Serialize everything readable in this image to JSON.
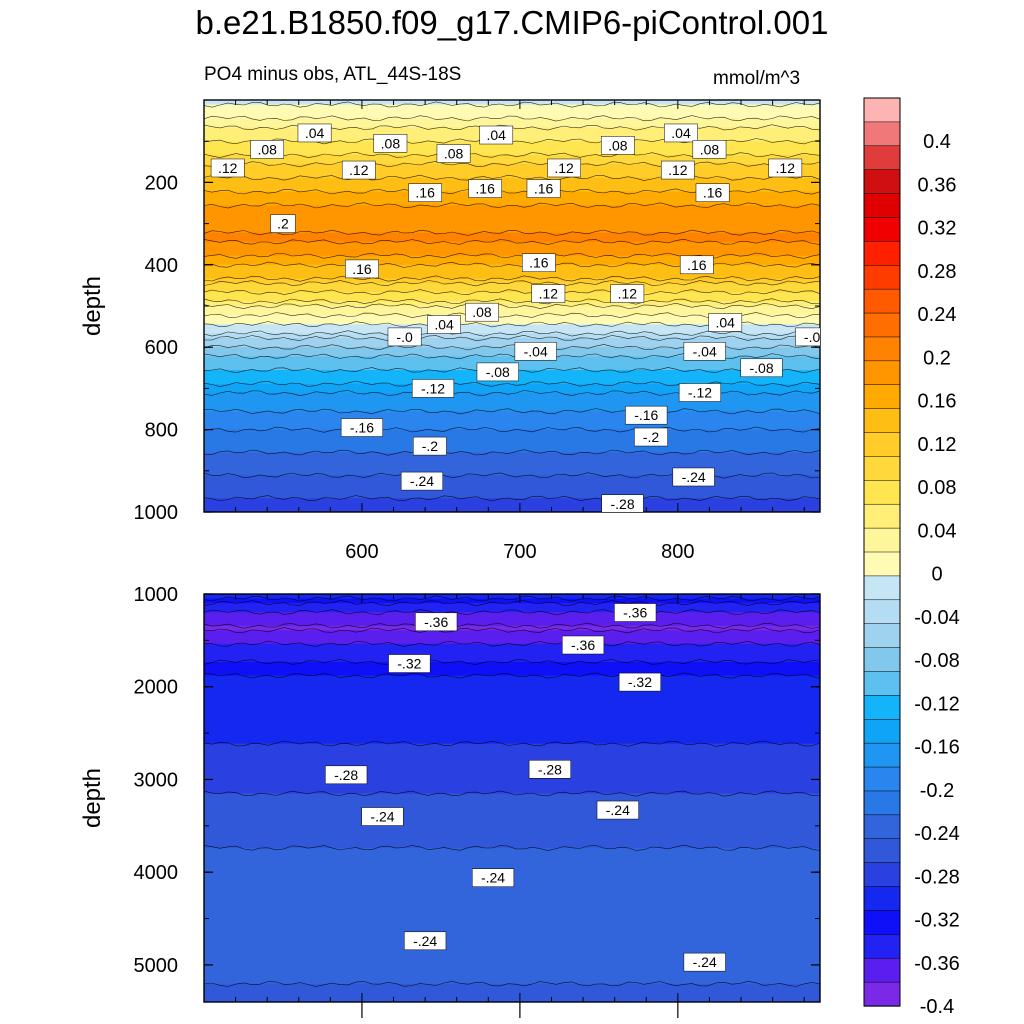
{
  "title": "b.e21.B1850.f09_g17.CMIP6-piControl.001",
  "subtitle_left": "PO4 minus obs, ATL_44S-18S",
  "subtitle_right": "mmol/m^3",
  "chart_data": [
    {
      "type": "heatmap",
      "panel": "upper",
      "ylabel": "depth",
      "xlabel": "",
      "y_reversed": true,
      "ylim": [
        0,
        1000
      ],
      "xlim": [
        500,
        890
      ],
      "x_ticks": [
        600,
        700,
        800
      ],
      "y_ticks": [
        200,
        400,
        600,
        800,
        1000
      ],
      "depth_profile": [
        {
          "depth": 0,
          "value": -0.01
        },
        {
          "depth": 40,
          "value": 0.02
        },
        {
          "depth": 120,
          "value": 0.08
        },
        {
          "depth": 200,
          "value": 0.14
        },
        {
          "depth": 280,
          "value": 0.19
        },
        {
          "depth": 340,
          "value": 0.2
        },
        {
          "depth": 420,
          "value": 0.14
        },
        {
          "depth": 480,
          "value": 0.07
        },
        {
          "depth": 540,
          "value": 0.0
        },
        {
          "depth": 620,
          "value": -0.09
        },
        {
          "depth": 720,
          "value": -0.16
        },
        {
          "depth": 820,
          "value": -0.21
        },
        {
          "depth": 920,
          "value": -0.25
        },
        {
          "depth": 1000,
          "value": -0.28
        }
      ],
      "contour_labels": [
        {
          "text": ".04",
          "x": 570,
          "y": 80
        },
        {
          "text": ".08",
          "x": 540,
          "y": 120
        },
        {
          "text": ".08",
          "x": 618,
          "y": 105
        },
        {
          "text": ".08",
          "x": 658,
          "y": 130
        },
        {
          "text": ".04",
          "x": 685,
          "y": 85
        },
        {
          "text": ".08",
          "x": 762,
          "y": 110
        },
        {
          "text": ".04",
          "x": 802,
          "y": 80
        },
        {
          "text": ".08",
          "x": 820,
          "y": 120
        },
        {
          "text": ".12",
          "x": 515,
          "y": 165
        },
        {
          "text": ".12",
          "x": 598,
          "y": 170
        },
        {
          "text": ".12",
          "x": 728,
          "y": 165
        },
        {
          "text": ".12",
          "x": 800,
          "y": 170
        },
        {
          "text": ".12",
          "x": 868,
          "y": 165
        },
        {
          "text": ".16",
          "x": 640,
          "y": 225
        },
        {
          "text": ".16",
          "x": 678,
          "y": 215
        },
        {
          "text": ".16",
          "x": 715,
          "y": 215
        },
        {
          "text": ".16",
          "x": 822,
          "y": 225
        },
        {
          "text": ".2",
          "x": 550,
          "y": 300
        },
        {
          "text": ".16",
          "x": 600,
          "y": 410
        },
        {
          "text": ".16",
          "x": 712,
          "y": 395
        },
        {
          "text": ".16",
          "x": 812,
          "y": 400
        },
        {
          "text": ".12",
          "x": 718,
          "y": 470
        },
        {
          "text": ".12",
          "x": 768,
          "y": 470
        },
        {
          "text": ".08",
          "x": 676,
          "y": 515
        },
        {
          "text": ".04",
          "x": 652,
          "y": 545
        },
        {
          "text": ".04",
          "x": 830,
          "y": 540
        },
        {
          "text": "-.0",
          "x": 627,
          "y": 575
        },
        {
          "text": "-.0",
          "x": 885,
          "y": 575
        },
        {
          "text": "-.04",
          "x": 710,
          "y": 610
        },
        {
          "text": "-.04",
          "x": 817,
          "y": 610
        },
        {
          "text": "-.08",
          "x": 686,
          "y": 660
        },
        {
          "text": "-.08",
          "x": 853,
          "y": 650
        },
        {
          "text": "-.12",
          "x": 645,
          "y": 700
        },
        {
          "text": "-.12",
          "x": 814,
          "y": 710
        },
        {
          "text": "-.16",
          "x": 600,
          "y": 795
        },
        {
          "text": "-.16",
          "x": 780,
          "y": 765
        },
        {
          "text": "-.2",
          "x": 643,
          "y": 840
        },
        {
          "text": "-.2",
          "x": 783,
          "y": 818
        },
        {
          "text": "-.24",
          "x": 638,
          "y": 925
        },
        {
          "text": "-.24",
          "x": 810,
          "y": 915
        },
        {
          "text": "-.28",
          "x": 765,
          "y": 980
        }
      ]
    },
    {
      "type": "heatmap",
      "panel": "lower",
      "ylabel": "depth",
      "xlabel": "",
      "y_reversed": true,
      "ylim": [
        1000,
        5400
      ],
      "xlim": [
        500,
        890
      ],
      "y_ticks": [
        1000,
        2000,
        3000,
        4000,
        5000
      ],
      "depth_profile": [
        {
          "depth": 1000,
          "value": -0.29
        },
        {
          "depth": 1150,
          "value": -0.35
        },
        {
          "depth": 1350,
          "value": -0.38
        },
        {
          "depth": 1600,
          "value": -0.35
        },
        {
          "depth": 1900,
          "value": -0.31
        },
        {
          "depth": 2600,
          "value": -0.29
        },
        {
          "depth": 3300,
          "value": -0.26
        },
        {
          "depth": 4200,
          "value": -0.23
        },
        {
          "depth": 5000,
          "value": -0.24
        },
        {
          "depth": 5400,
          "value": -0.25
        }
      ],
      "contour_labels": [
        {
          "text": "-.36",
          "x": 647,
          "y": 1300
        },
        {
          "text": "-.36",
          "x": 773,
          "y": 1200
        },
        {
          "text": "-.36",
          "x": 740,
          "y": 1550
        },
        {
          "text": "-.32",
          "x": 630,
          "y": 1750
        },
        {
          "text": "-.32",
          "x": 776,
          "y": 1950
        },
        {
          "text": "-.28",
          "x": 590,
          "y": 2950
        },
        {
          "text": "-.28",
          "x": 719,
          "y": 2890
        },
        {
          "text": "-.24",
          "x": 613,
          "y": 3400
        },
        {
          "text": "-.24",
          "x": 762,
          "y": 3330
        },
        {
          "text": "-.24",
          "x": 683,
          "y": 4060
        },
        {
          "text": "-.24",
          "x": 640,
          "y": 4740
        },
        {
          "text": "-.24",
          "x": 817,
          "y": 4970
        }
      ]
    }
  ],
  "colorbar": {
    "labels": [
      "0.4",
      "0.36",
      "0.32",
      "0.28",
      "0.24",
      "0.2",
      "0.16",
      "0.12",
      "0.08",
      "0.04",
      "0",
      "-0.04",
      "-0.08",
      "-0.12",
      "-0.16",
      "-0.2",
      "-0.24",
      "-0.28",
      "-0.32",
      "-0.36",
      "-0.4"
    ],
    "colors": [
      "#ffb4b4",
      "#f07878",
      "#e03c3c",
      "#d01010",
      "#e00000",
      "#f00000",
      "#ff2000",
      "#ff3c00",
      "#ff5a00",
      "#ff6e00",
      "#ff8200",
      "#ff9600",
      "#ffaa00",
      "#ffbe14",
      "#ffcc28",
      "#ffd83c",
      "#ffe650",
      "#ffee78",
      "#fff59a",
      "#fffab4",
      "#c6e6f6",
      "#b4dcf2",
      "#9ed2ee",
      "#82c8ec",
      "#5ec0ee",
      "#14b4fa",
      "#10a4f6",
      "#1e96f2",
      "#2a86ee",
      "#2878e6",
      "#3264dc",
      "#3058d8",
      "#2a40e0",
      "#1428f0",
      "#1010f8",
      "#2222f2",
      "#5a1eee",
      "#7a2ae6"
    ]
  }
}
